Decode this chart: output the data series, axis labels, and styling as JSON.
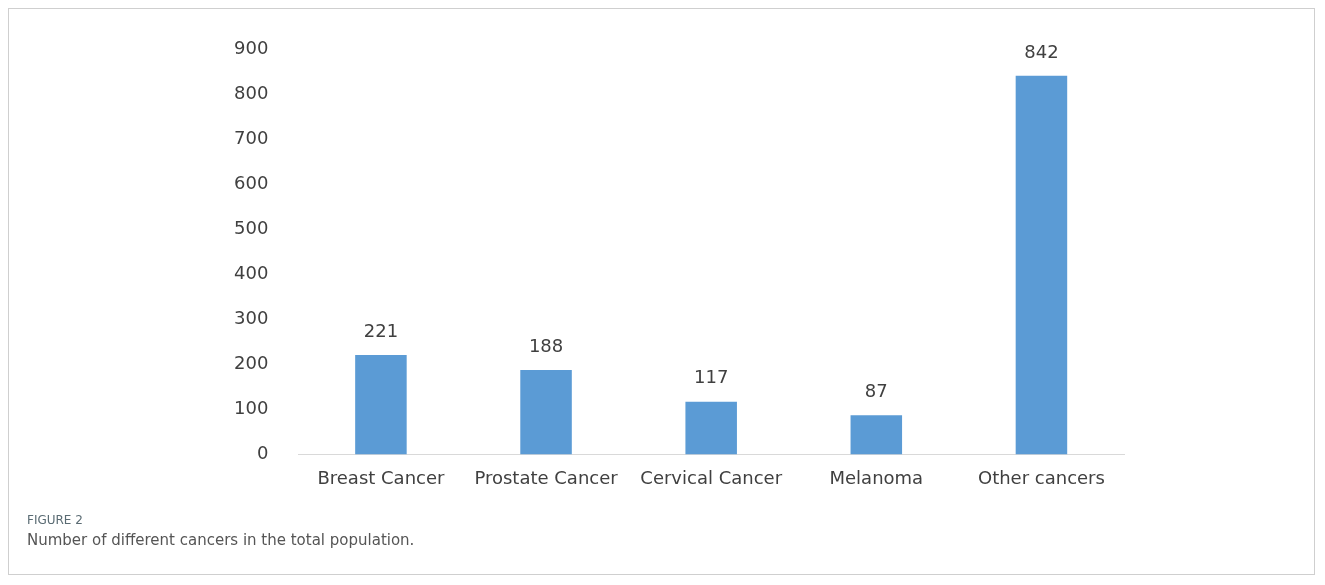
{
  "chart_data": {
    "type": "bar",
    "categories": [
      "Breast Cancer",
      "Prostate Cancer",
      "Cervical Cancer",
      "Melanoma",
      "Other cancers"
    ],
    "values": [
      221,
      188,
      117,
      87,
      842
    ],
    "color": "#5b9bd5",
    "ylim": [
      0,
      900
    ],
    "yticks": [
      0,
      100,
      200,
      300,
      400,
      500,
      600,
      700,
      800,
      900
    ],
    "grid": false,
    "data_labels": true,
    "legend": false,
    "annotations": [
      "FIGURE 2",
      "Number of different cancers in the total population."
    ]
  }
}
